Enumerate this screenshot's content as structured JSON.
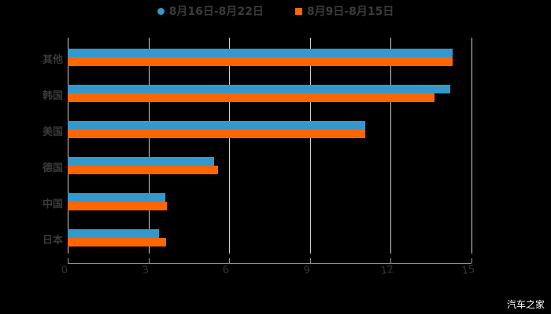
{
  "chart_data": {
    "type": "bar",
    "orientation": "horizontal",
    "title": "",
    "xlabel": "",
    "ylabel": "",
    "categories": [
      "其他",
      "韩国",
      "美国",
      "德国",
      "中国",
      "日本"
    ],
    "series": [
      {
        "name": "8月16日-8月22日",
        "color": "#3399cc",
        "values": [
          14.3,
          14.2,
          11.05,
          5.44,
          3.63,
          3.39
        ]
      },
      {
        "name": "8月9日-8月15日",
        "color": "#ff6600",
        "values": [
          14.3,
          13.63,
          11.05,
          5.58,
          3.68,
          3.65
        ]
      }
    ],
    "xlim": [
      0,
      15
    ],
    "xticks": [
      "0",
      "3",
      "6",
      "9",
      "12",
      "15"
    ],
    "grid": true,
    "legend_position": "top"
  },
  "legend": {
    "items": [
      {
        "label": "8月16日-8月22日",
        "color": "#3399cc",
        "marker": "circle"
      },
      {
        "label": "8月9日-8月15日",
        "color": "#ff6600",
        "marker": "square"
      }
    ]
  },
  "watermark": "汽车之家"
}
